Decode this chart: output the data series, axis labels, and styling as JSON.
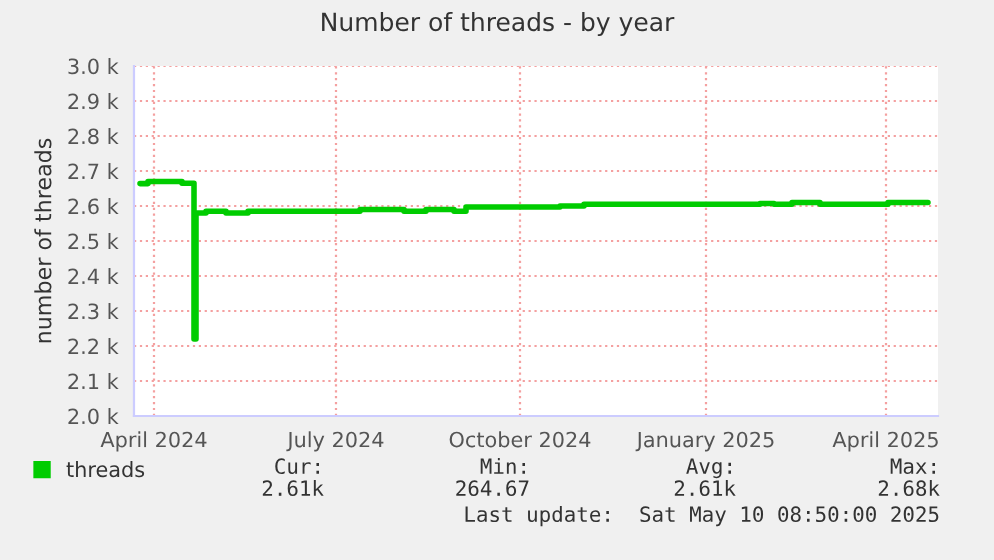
{
  "chart_data": {
    "type": "step",
    "title": "Number of threads - by year",
    "ylabel": "number of threads",
    "x": [
      "2024-04-10",
      "2024-04-14",
      "2024-05-01",
      "2024-05-06",
      "2024-05-07",
      "2024-05-08",
      "2024-05-13",
      "2024-05-23",
      "2024-06-03",
      "2024-07-21",
      "2024-07-29",
      "2024-08-20",
      "2024-08-31",
      "2024-09-14",
      "2024-09-20",
      "2024-11-06",
      "2024-11-18",
      "2025-02-14",
      "2025-02-21",
      "2025-03-02",
      "2025-03-16",
      "2025-04-19",
      "2025-05-09"
    ],
    "series": [
      {
        "name": "threads",
        "color": "#00cc00",
        "values": [
          2664,
          2670,
          2665,
          2665,
          2220,
          2580,
          2585,
          2580,
          2585,
          2585,
          2590,
          2585,
          2590,
          2585,
          2597,
          2600,
          2605,
          2607,
          2605,
          2610,
          2605,
          2610,
          2610
        ]
      }
    ],
    "xlim": [
      "2024-04-07",
      "2025-05-14"
    ],
    "xticks": [
      {
        "value": "2024-04-17",
        "label": "April 2024"
      },
      {
        "value": "2024-07-17",
        "label": "July 2024"
      },
      {
        "value": "2024-10-17",
        "label": "October 2024"
      },
      {
        "value": "2025-01-18",
        "label": "January 2025"
      },
      {
        "value": "2025-04-18",
        "label": "April 2025"
      }
    ],
    "ylim": [
      2000,
      3000
    ],
    "yticks": [
      {
        "value": 2000,
        "label": "2.0 k"
      },
      {
        "value": 2100,
        "label": "2.1 k"
      },
      {
        "value": 2200,
        "label": "2.2 k"
      },
      {
        "value": 2300,
        "label": "2.3 k"
      },
      {
        "value": 2400,
        "label": "2.4 k"
      },
      {
        "value": 2500,
        "label": "2.5 k"
      },
      {
        "value": 2600,
        "label": "2.6 k"
      },
      {
        "value": 2700,
        "label": "2.7 k"
      },
      {
        "value": 2800,
        "label": "2.8 k"
      },
      {
        "value": 2900,
        "label": "2.9 k"
      },
      {
        "value": 3000,
        "label": "3.0 k"
      }
    ],
    "grid": true,
    "legend": "bottom left",
    "annotations": [
      "Cur:",
      "Min:",
      "Avg:",
      "Max:",
      "2.61k",
      "264.67",
      "2.61k",
      "2.68k",
      "Last update:  Sat May 10 08:50:00 2025"
    ]
  }
}
